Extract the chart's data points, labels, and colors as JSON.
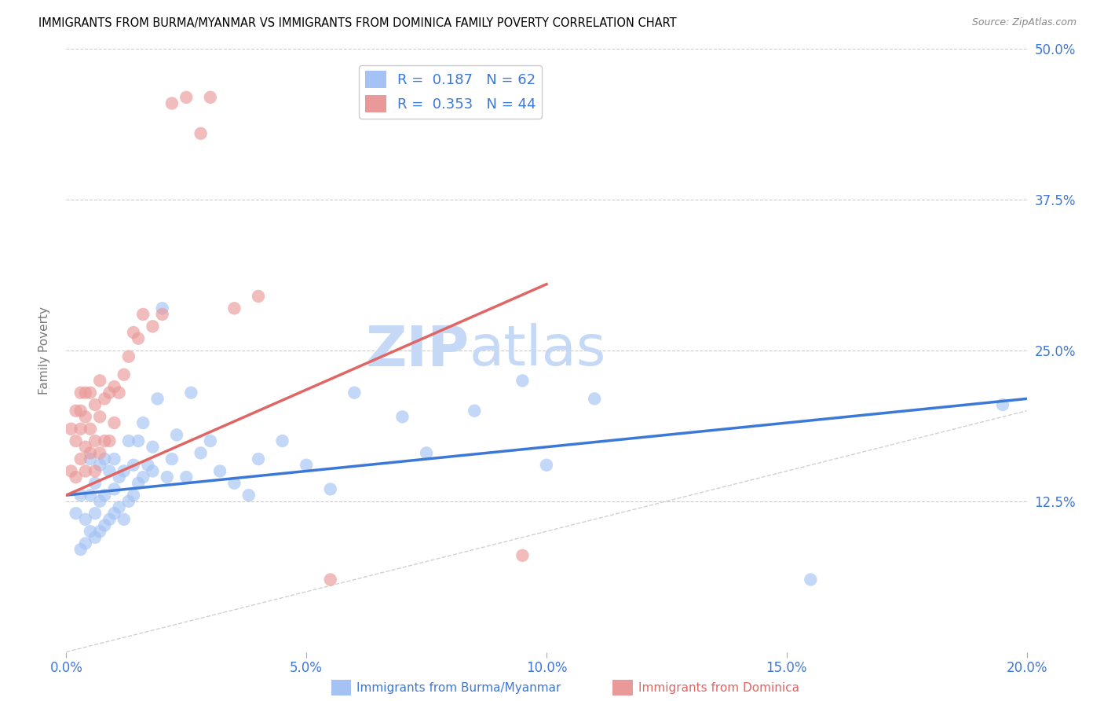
{
  "title": "IMMIGRANTS FROM BURMA/MYANMAR VS IMMIGRANTS FROM DOMINICA FAMILY POVERTY CORRELATION CHART",
  "source": "Source: ZipAtlas.com",
  "xlabel_blue": "Immigrants from Burma/Myanmar",
  "xlabel_pink": "Immigrants from Dominica",
  "ylabel": "Family Poverty",
  "xlim": [
    0.0,
    0.2
  ],
  "ylim": [
    0.0,
    0.5
  ],
  "xticks": [
    0.0,
    0.05,
    0.1,
    0.15,
    0.2
  ],
  "yticks_right": [
    0.125,
    0.25,
    0.375,
    0.5
  ],
  "ytick_labels_right": [
    "12.5%",
    "25.0%",
    "37.5%",
    "50.0%"
  ],
  "xtick_labels": [
    "0.0%",
    "5.0%",
    "10.0%",
    "15.0%",
    "20.0%"
  ],
  "legend_R_blue": "0.187",
  "legend_N_blue": "62",
  "legend_R_pink": "0.353",
  "legend_N_pink": "44",
  "blue_color": "#a4c2f4",
  "pink_color": "#ea9999",
  "blue_line_color": "#3c78d8",
  "pink_line_color": "#e06666",
  "diag_color": "#cccccc",
  "grid_color": "#cccccc",
  "title_color": "#000000",
  "axis_label_color": "#777777",
  "tick_label_color": "#3c78d8",
  "watermark_zip_color": "#c5d9f7",
  "watermark_atlas_color": "#c5d9f7",
  "blue_scatter_x": [
    0.002,
    0.003,
    0.003,
    0.004,
    0.004,
    0.005,
    0.005,
    0.005,
    0.006,
    0.006,
    0.006,
    0.007,
    0.007,
    0.007,
    0.008,
    0.008,
    0.008,
    0.009,
    0.009,
    0.01,
    0.01,
    0.01,
    0.011,
    0.011,
    0.012,
    0.012,
    0.013,
    0.013,
    0.014,
    0.014,
    0.015,
    0.015,
    0.016,
    0.016,
    0.017,
    0.018,
    0.018,
    0.019,
    0.02,
    0.021,
    0.022,
    0.023,
    0.025,
    0.026,
    0.028,
    0.03,
    0.032,
    0.035,
    0.038,
    0.04,
    0.045,
    0.05,
    0.055,
    0.06,
    0.07,
    0.075,
    0.085,
    0.095,
    0.1,
    0.11,
    0.155,
    0.195
  ],
  "blue_scatter_y": [
    0.115,
    0.085,
    0.13,
    0.09,
    0.11,
    0.1,
    0.13,
    0.16,
    0.095,
    0.115,
    0.14,
    0.1,
    0.125,
    0.155,
    0.105,
    0.13,
    0.16,
    0.11,
    0.15,
    0.115,
    0.135,
    0.16,
    0.12,
    0.145,
    0.11,
    0.15,
    0.125,
    0.175,
    0.13,
    0.155,
    0.14,
    0.175,
    0.145,
    0.19,
    0.155,
    0.15,
    0.17,
    0.21,
    0.285,
    0.145,
    0.16,
    0.18,
    0.145,
    0.215,
    0.165,
    0.175,
    0.15,
    0.14,
    0.13,
    0.16,
    0.175,
    0.155,
    0.135,
    0.215,
    0.195,
    0.165,
    0.2,
    0.225,
    0.155,
    0.21,
    0.06,
    0.205
  ],
  "pink_scatter_x": [
    0.001,
    0.001,
    0.002,
    0.002,
    0.002,
    0.003,
    0.003,
    0.003,
    0.003,
    0.004,
    0.004,
    0.004,
    0.004,
    0.005,
    0.005,
    0.005,
    0.006,
    0.006,
    0.006,
    0.007,
    0.007,
    0.007,
    0.008,
    0.008,
    0.009,
    0.009,
    0.01,
    0.01,
    0.011,
    0.012,
    0.013,
    0.014,
    0.015,
    0.016,
    0.018,
    0.02,
    0.022,
    0.025,
    0.028,
    0.03,
    0.035,
    0.04,
    0.055,
    0.095
  ],
  "pink_scatter_y": [
    0.15,
    0.185,
    0.145,
    0.175,
    0.2,
    0.16,
    0.185,
    0.2,
    0.215,
    0.15,
    0.17,
    0.195,
    0.215,
    0.165,
    0.185,
    0.215,
    0.15,
    0.175,
    0.205,
    0.165,
    0.195,
    0.225,
    0.175,
    0.21,
    0.175,
    0.215,
    0.19,
    0.22,
    0.215,
    0.23,
    0.245,
    0.265,
    0.26,
    0.28,
    0.27,
    0.28,
    0.455,
    0.46,
    0.43,
    0.46,
    0.285,
    0.295,
    0.06,
    0.08
  ],
  "blue_trend_x": [
    0.0,
    0.2
  ],
  "blue_trend_y": [
    0.13,
    0.21
  ],
  "pink_trend_x": [
    0.0,
    0.1
  ],
  "pink_trend_y": [
    0.13,
    0.305
  ]
}
